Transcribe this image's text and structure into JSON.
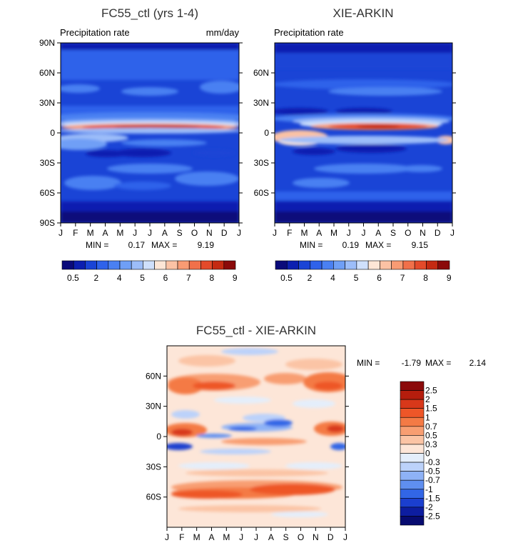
{
  "months": [
    "J",
    "F",
    "M",
    "A",
    "M",
    "J",
    "J",
    "A",
    "S",
    "O",
    "N",
    "D",
    "J"
  ],
  "chart_data": [
    {
      "type": "heatmap",
      "title": "FC55_ctl (yrs 1-4)",
      "subtitle_left": "Precipitation rate",
      "subtitle_right": "mm/day",
      "xlabel": "",
      "ylabel": "",
      "ylim": [
        -90,
        90
      ],
      "yticks": [
        "90N",
        "60N",
        "30N",
        "0",
        "30S",
        "60S",
        "90S"
      ],
      "min_label": "MIN =",
      "min_value": "0.17",
      "max_label": "MAX =",
      "max_value": "9.19",
      "legend_labels": [
        "0.5",
        "2",
        "4",
        "5",
        "6",
        "7",
        "8",
        "9"
      ],
      "palette": [
        "#0a0a7a",
        "#0c1fb0",
        "#1a44d6",
        "#2f62ea",
        "#4a80f2",
        "#6f9ff6",
        "#9cbdf9",
        "#cfe0fc",
        "#fde6d6",
        "#fbc2a4",
        "#f89b73",
        "#f1704a",
        "#e44a2a",
        "#c52a12",
        "#8b0a0a"
      ]
    },
    {
      "type": "heatmap",
      "title": "XIE-ARKIN",
      "subtitle_left": "Precipitation rate",
      "ylim": [
        -90,
        90
      ],
      "yticks": [
        "60N",
        "30N",
        "0",
        "30S",
        "60S"
      ],
      "min_label": "MIN =",
      "min_value": "0.19",
      "max_label": "MAX =",
      "max_value": "9.15",
      "legend_labels": [
        "0.5",
        "2",
        "4",
        "5",
        "6",
        "7",
        "8",
        "9"
      ]
    },
    {
      "type": "heatmap",
      "title": "FC55_ctl - XIE-ARKIN",
      "ylim": [
        -90,
        90
      ],
      "yticks": [
        "60N",
        "30N",
        "0",
        "30S",
        "60S"
      ],
      "min_label": "MIN =",
      "min_value": "-1.79",
      "max_label": "MAX =",
      "max_value": "2.14",
      "legend_labels": [
        "2.5",
        "2",
        "1.5",
        "1",
        "0.7",
        "0.5",
        "0.3",
        "0",
        "-0.3",
        "-0.5",
        "-0.7",
        "-1",
        "-1.5",
        "-2",
        "-2.5"
      ],
      "palette": [
        "#8b0a0a",
        "#b51d0d",
        "#d8381a",
        "#ee5628",
        "#f47a45",
        "#f89e72",
        "#fbc4a5",
        "#fde6d8",
        "#e4eefb",
        "#bcd2fa",
        "#8eb2f6",
        "#5f8ff0",
        "#3266e6",
        "#1b3fcf",
        "#0d1da0",
        "#070b70"
      ]
    }
  ]
}
